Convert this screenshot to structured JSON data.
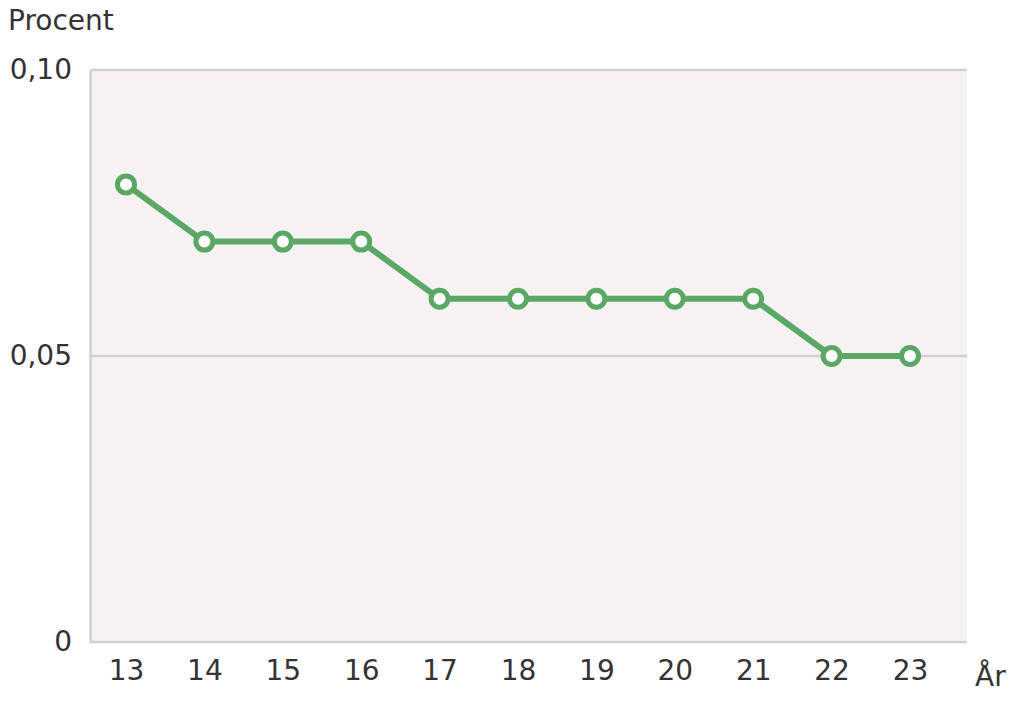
{
  "chart_data": {
    "type": "line",
    "y_label": "Procent",
    "x_label": "År",
    "categories": [
      "13",
      "14",
      "15",
      "16",
      "17",
      "18",
      "19",
      "20",
      "21",
      "22",
      "23"
    ],
    "values": [
      0.08,
      0.07,
      0.07,
      0.07,
      0.06,
      0.06,
      0.06,
      0.06,
      0.06,
      0.05,
      0.05
    ],
    "color": "#5aa864",
    "marker": "circle",
    "ylim": [
      0,
      0.1
    ],
    "yticks": [
      0,
      {
        "value": 0.05,
        "label": "0,05"
      },
      {
        "value": 0.1,
        "label": "0,10"
      }
    ],
    "grid": true
  }
}
